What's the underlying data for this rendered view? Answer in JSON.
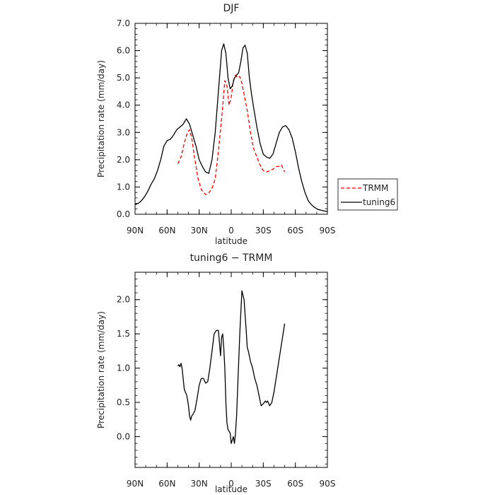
{
  "chart_data": [
    {
      "type": "line",
      "title": "DJF",
      "xlabel": "latitude",
      "ylabel": "Precipitation rate (mm/day)",
      "xlim": [
        90,
        -90
      ],
      "ylim": [
        0,
        7
      ],
      "x_ticks": [
        90,
        60,
        30,
        0,
        -30,
        -60,
        -90
      ],
      "x_tick_labels": [
        "90N",
        "60N",
        "30N",
        "0",
        "30S",
        "60S",
        "90S"
      ],
      "y_ticks": [
        0,
        1,
        2,
        3,
        4,
        5,
        6,
        7
      ],
      "y_tick_labels": [
        "0.0",
        "1.0",
        "2.0",
        "3.0",
        "4.0",
        "5.0",
        "6.0",
        "7.0"
      ],
      "grid": false,
      "legend_position": "right-outside",
      "series": [
        {
          "name": "TRMM",
          "color": "#ff0000",
          "dash": "dashed",
          "x": [
            50,
            47,
            44,
            41,
            39,
            37,
            34,
            31,
            28,
            24,
            21,
            18,
            15,
            12,
            9,
            6,
            4,
            2,
            0,
            -2,
            -4,
            -6,
            -8,
            -10,
            -12,
            -15,
            -18,
            -21,
            -24,
            -27,
            -30,
            -33,
            -36,
            -39,
            -42,
            -44,
            -47,
            -50
          ],
          "y": [
            1.85,
            2.1,
            2.6,
            3.0,
            3.1,
            2.8,
            2.0,
            1.3,
            0.9,
            0.72,
            0.78,
            0.95,
            1.3,
            2.3,
            3.5,
            4.9,
            4.7,
            4.0,
            4.3,
            4.9,
            5.1,
            5.0,
            5.05,
            4.8,
            4.4,
            3.8,
            3.0,
            2.4,
            2.1,
            1.8,
            1.6,
            1.55,
            1.6,
            1.65,
            1.75,
            1.75,
            1.8,
            1.55
          ]
        },
        {
          "name": "tuning6",
          "color": "#000000",
          "dash": "solid",
          "x": [
            90,
            87,
            84,
            81,
            78,
            75,
            72,
            69,
            66,
            63,
            60,
            57,
            54,
            51,
            48,
            45,
            42,
            39,
            36,
            33,
            30,
            27,
            24,
            21,
            18,
            15,
            12,
            9,
            7,
            5,
            3,
            1,
            -1,
            -3,
            -5,
            -7,
            -9,
            -11,
            -13,
            -15,
            -17,
            -19,
            -21,
            -24,
            -27,
            -30,
            -33,
            -36,
            -39,
            -42,
            -45,
            -48,
            -51,
            -54,
            -57,
            -60,
            -63,
            -66,
            -69,
            -72,
            -75,
            -78,
            -81,
            -84,
            -87,
            -90
          ],
          "y": [
            0.35,
            0.4,
            0.5,
            0.65,
            0.85,
            1.1,
            1.3,
            1.6,
            2.0,
            2.5,
            2.7,
            2.75,
            2.9,
            3.1,
            3.2,
            3.3,
            3.5,
            3.3,
            2.9,
            2.5,
            2.0,
            1.75,
            1.55,
            1.5,
            2.0,
            3.0,
            4.5,
            6.0,
            6.25,
            5.9,
            5.0,
            4.6,
            4.7,
            5.0,
            5.1,
            5.2,
            5.6,
            6.1,
            6.2,
            5.9,
            5.0,
            4.4,
            3.9,
            3.2,
            2.6,
            2.2,
            2.1,
            2.05,
            2.2,
            2.6,
            3.0,
            3.2,
            3.25,
            3.1,
            2.8,
            2.3,
            1.7,
            1.2,
            0.8,
            0.5,
            0.35,
            0.25,
            0.18,
            0.15,
            0.12,
            0.1
          ]
        }
      ]
    },
    {
      "type": "line",
      "title": "tuning6 − TRMM",
      "xlabel": "latitude",
      "ylabel": "Precipitation rate (mm/day)",
      "xlim": [
        90,
        -90
      ],
      "ylim": [
        -0.45,
        2.4
      ],
      "x_ticks": [
        90,
        60,
        30,
        0,
        -30,
        -60,
        -90
      ],
      "x_tick_labels": [
        "90N",
        "60N",
        "30N",
        "0",
        "30S",
        "60S",
        "90S"
      ],
      "y_ticks": [
        0,
        0.5,
        1.0,
        1.5,
        2.0
      ],
      "y_tick_labels": [
        "0.0",
        "0.5",
        "1.0",
        "1.5",
        "2.0"
      ],
      "grid": false,
      "series": [
        {
          "color": "#000000",
          "dash": "solid",
          "x": [
            50,
            49,
            48,
            47,
            46,
            45,
            44,
            43,
            42,
            41,
            40,
            39,
            38,
            37,
            36,
            34,
            32,
            30,
            28,
            26,
            24,
            22,
            20,
            18,
            16,
            14,
            12,
            10,
            9,
            8,
            7,
            6,
            5,
            4,
            3,
            2,
            1,
            0,
            -1,
            -2,
            -3,
            -4,
            -5,
            -6,
            -7,
            -8,
            -10,
            -12,
            -14,
            -15,
            -16,
            -18,
            -20,
            -22,
            -24,
            -26,
            -28,
            -30,
            -32,
            -33,
            -34,
            -36,
            -38,
            -40,
            -42,
            -44,
            -46,
            -48,
            -50
          ],
          "y": [
            1.03,
            1.05,
            1.02,
            1.07,
            1.0,
            0.85,
            0.7,
            0.65,
            0.62,
            0.55,
            0.45,
            0.3,
            0.24,
            0.3,
            0.32,
            0.38,
            0.55,
            0.75,
            0.85,
            0.85,
            0.78,
            0.8,
            1.0,
            1.25,
            1.5,
            1.55,
            1.55,
            1.18,
            1.45,
            1.5,
            1.3,
            1.0,
            0.5,
            0.2,
            0.1,
            0.08,
            0.05,
            -0.1,
            -0.05,
            0.0,
            -0.1,
            0.05,
            0.3,
            0.7,
            1.1,
            1.5,
            2.13,
            2.0,
            1.55,
            1.3,
            1.25,
            1.1,
            1.0,
            0.85,
            0.75,
            0.6,
            0.45,
            0.48,
            0.52,
            0.5,
            0.52,
            0.45,
            0.5,
            0.65,
            0.85,
            1.05,
            1.25,
            1.45,
            1.65
          ]
        }
      ]
    }
  ]
}
